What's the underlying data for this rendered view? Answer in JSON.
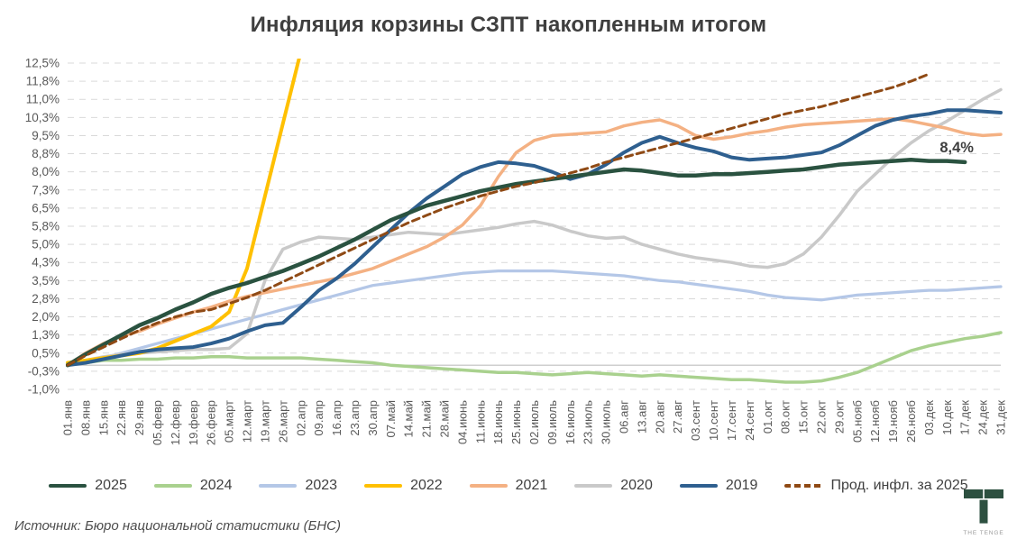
{
  "title": "Инфляция корзины СЗПТ накопленным итогом",
  "source": "Источник: Бюро национальной статистики (БНС)",
  "logo": {
    "text": "THE TENGE"
  },
  "colors": {
    "background": "#ffffff",
    "title_text": "#3f3f3f",
    "axis_text": "#595959",
    "gridline": "#d9d9d9",
    "zero_axis": "#bfbfbf",
    "annotation_text": "#3f3f3f",
    "logo_green": "#2d5040"
  },
  "chart_data": {
    "type": "line",
    "title": "Инфляция корзины СЗПТ накопленным итогом",
    "xlabel": "",
    "ylabel": "",
    "y_min": -1.0,
    "y_max": 12.5,
    "y_step": 0.75,
    "grid": "horizontal-dashed",
    "zero_axis_line": true,
    "legend_position": "bottom",
    "annotation": {
      "text": "8,4%",
      "index": 48.6,
      "value": 8.8
    },
    "y_ticks": [
      {
        "label": "12,5%",
        "value": 12.5
      },
      {
        "label": "11,8%",
        "value": 11.75
      },
      {
        "label": "11,0%",
        "value": 11.0
      },
      {
        "label": "10,3%",
        "value": 10.25
      },
      {
        "label": "9,5%",
        "value": 9.5
      },
      {
        "label": "8,8%",
        "value": 8.75
      },
      {
        "label": "8,0%",
        "value": 8.0
      },
      {
        "label": "7,3%",
        "value": 7.25
      },
      {
        "label": "6,5%",
        "value": 6.5
      },
      {
        "label": "5,8%",
        "value": 5.75
      },
      {
        "label": "5,0%",
        "value": 5.0
      },
      {
        "label": "4,3%",
        "value": 4.25
      },
      {
        "label": "3,5%",
        "value": 3.5
      },
      {
        "label": "2,8%",
        "value": 2.75
      },
      {
        "label": "2,0%",
        "value": 2.0
      },
      {
        "label": "1,3%",
        "value": 1.25
      },
      {
        "label": "0,5%",
        "value": 0.5
      },
      {
        "label": "-0,3%",
        "value": -0.25
      },
      {
        "label": "-1,0%",
        "value": -1.0
      }
    ],
    "x_labels": [
      "01.янв",
      "08.янв",
      "15.янв",
      "22.янв",
      "29.янв",
      "05.февр",
      "12.февр",
      "19.февр",
      "26.февр",
      "05.март",
      "12.март",
      "19.март",
      "26.март",
      "02.апр",
      "09.апр",
      "16.апр",
      "23.апр",
      "30.апр",
      "07.май",
      "14.май",
      "21.май",
      "28.май",
      "04.июнь",
      "11.июнь",
      "18.июнь",
      "25.июнь",
      "02.июль",
      "09.июль",
      "16.июль",
      "23.июль",
      "30.июль",
      "06.авг",
      "13.авг",
      "20.авг",
      "27.авг",
      "03.сент",
      "10.сент",
      "17.сент",
      "24.сент",
      "01.окт",
      "08.окт",
      "15.окт",
      "22.окт",
      "29.окт",
      "05.нояб",
      "12.нояб",
      "19.нояб",
      "26.нояб",
      "03.дек",
      "10.дек",
      "17.дек",
      "24.дек",
      "31.дек"
    ],
    "series": [
      {
        "name": "2025",
        "color": "#2a5240",
        "width": 4.5,
        "dash": null,
        "z": 7,
        "values": [
          0,
          0.45,
          0.85,
          1.25,
          1.65,
          1.95,
          2.3,
          2.6,
          2.95,
          3.2,
          3.4,
          3.65,
          3.9,
          4.2,
          4.5,
          4.85,
          5.2,
          5.6,
          6.0,
          6.3,
          6.6,
          6.8,
          7.0,
          7.2,
          7.35,
          7.5,
          7.6,
          7.7,
          7.8,
          7.9,
          8.0,
          8.1,
          8.05,
          7.95,
          7.85,
          7.85,
          7.9,
          7.9,
          7.95,
          8.0,
          8.05,
          8.1,
          8.2,
          8.3,
          8.35,
          8.4,
          8.45,
          8.5,
          8.45,
          8.45,
          8.4,
          null,
          null
        ]
      },
      {
        "name": "2024",
        "color": "#a9d18e",
        "width": 3.5,
        "dash": null,
        "z": 1,
        "values": [
          0,
          0.1,
          0.2,
          0.2,
          0.25,
          0.25,
          0.3,
          0.3,
          0.35,
          0.35,
          0.3,
          0.3,
          0.3,
          0.3,
          0.25,
          0.2,
          0.15,
          0.1,
          0,
          -0.05,
          -0.1,
          -0.15,
          -0.2,
          -0.25,
          -0.3,
          -0.3,
          -0.35,
          -0.4,
          -0.35,
          -0.3,
          -0.35,
          -0.4,
          -0.45,
          -0.4,
          -0.45,
          -0.5,
          -0.55,
          -0.6,
          -0.6,
          -0.65,
          -0.7,
          -0.7,
          -0.65,
          -0.5,
          -0.3,
          0,
          0.3,
          0.6,
          0.8,
          0.95,
          1.1,
          1.2,
          1.35
        ]
      },
      {
        "name": "2023",
        "color": "#b4c7e7",
        "width": 3.25,
        "dash": null,
        "z": 2,
        "values": [
          0,
          0.15,
          0.3,
          0.5,
          0.7,
          0.9,
          1.1,
          1.3,
          1.5,
          1.7,
          1.9,
          2.1,
          2.3,
          2.5,
          2.7,
          2.9,
          3.1,
          3.3,
          3.4,
          3.5,
          3.6,
          3.7,
          3.8,
          3.85,
          3.9,
          3.9,
          3.9,
          3.9,
          3.85,
          3.8,
          3.75,
          3.7,
          3.6,
          3.5,
          3.45,
          3.35,
          3.25,
          3.15,
          3.05,
          2.9,
          2.8,
          2.75,
          2.7,
          2.8,
          2.9,
          2.95,
          3.0,
          3.05,
          3.1,
          3.1,
          3.15,
          3.2,
          3.25
        ]
      },
      {
        "name": "2022",
        "color": "#ffc000",
        "width": 4,
        "dash": null,
        "z": 4,
        "values": [
          0.1,
          0.2,
          0.3,
          0.4,
          0.5,
          0.7,
          1.0,
          1.3,
          1.6,
          2.2,
          4.0,
          7.0,
          10.0,
          13.0,
          null,
          null,
          null,
          null,
          null,
          null,
          null,
          null,
          null,
          null,
          null,
          null,
          null,
          null,
          null,
          null,
          null,
          null,
          null,
          null,
          null,
          null,
          null,
          null,
          null,
          null,
          null,
          null,
          null,
          null,
          null,
          null,
          null,
          null,
          null,
          null,
          null,
          null,
          null
        ]
      },
      {
        "name": "2021",
        "color": "#f4b183",
        "width": 3.5,
        "dash": null,
        "z": 5,
        "values": [
          0,
          0.5,
          0.9,
          1.2,
          1.4,
          1.7,
          1.95,
          2.2,
          2.4,
          2.65,
          2.85,
          3.0,
          3.15,
          3.3,
          3.45,
          3.6,
          3.8,
          4.0,
          4.3,
          4.6,
          4.9,
          5.3,
          5.8,
          6.6,
          7.8,
          8.8,
          9.3,
          9.5,
          9.55,
          9.6,
          9.65,
          9.9,
          10.05,
          10.15,
          9.9,
          9.5,
          9.35,
          9.45,
          9.6,
          9.7,
          9.85,
          9.95,
          10.0,
          10.05,
          10.1,
          10.15,
          10.2,
          10.1,
          9.95,
          9.8,
          9.6,
          9.5,
          9.55
        ]
      },
      {
        "name": "2020",
        "color": "#c9c9c9",
        "width": 3.5,
        "dash": null,
        "z": 3,
        "values": [
          0,
          0.2,
          0.35,
          0.45,
          0.5,
          0.55,
          0.6,
          0.65,
          0.65,
          0.7,
          1.3,
          3.5,
          4.8,
          5.1,
          5.3,
          5.25,
          5.2,
          5.3,
          5.4,
          5.5,
          5.45,
          5.4,
          5.5,
          5.6,
          5.7,
          5.85,
          5.95,
          5.8,
          5.55,
          5.35,
          5.25,
          5.3,
          5.0,
          4.8,
          4.6,
          4.45,
          4.35,
          4.25,
          4.1,
          4.05,
          4.2,
          4.6,
          5.3,
          6.2,
          7.2,
          7.9,
          8.6,
          9.2,
          9.7,
          10.1,
          10.55,
          11.0,
          11.4
        ]
      },
      {
        "name": "2019",
        "color": "#2e5f8f",
        "width": 4,
        "dash": null,
        "z": 6,
        "values": [
          0,
          0.1,
          0.25,
          0.4,
          0.55,
          0.65,
          0.7,
          0.75,
          0.9,
          1.1,
          1.4,
          1.65,
          1.75,
          2.4,
          3.1,
          3.6,
          4.2,
          4.9,
          5.6,
          6.3,
          6.9,
          7.4,
          7.9,
          8.2,
          8.4,
          8.35,
          8.25,
          8.0,
          7.7,
          7.9,
          8.3,
          8.8,
          9.2,
          9.45,
          9.2,
          9.0,
          8.85,
          8.6,
          8.5,
          8.55,
          8.6,
          8.7,
          8.8,
          9.1,
          9.5,
          9.9,
          10.15,
          10.3,
          10.4,
          10.55,
          10.55,
          10.5,
          10.45
        ]
      },
      {
        "name": "Прод. инфл. за 2025",
        "color": "#8f4a15",
        "width": 3,
        "dash": [
          8,
          5
        ],
        "z": 8,
        "values": [
          0,
          0.4,
          0.75,
          1.1,
          1.45,
          1.75,
          2.0,
          2.2,
          2.3,
          2.55,
          2.8,
          3.1,
          3.45,
          3.8,
          4.15,
          4.5,
          4.85,
          5.2,
          5.55,
          5.9,
          6.2,
          6.5,
          6.75,
          7.0,
          7.2,
          7.4,
          7.55,
          7.75,
          7.95,
          8.15,
          8.4,
          8.6,
          8.8,
          9.0,
          9.2,
          9.4,
          9.6,
          9.8,
          10.0,
          10.2,
          10.4,
          10.55,
          10.7,
          10.9,
          11.1,
          11.3,
          11.5,
          11.75,
          12.05,
          null,
          null,
          null,
          null
        ]
      }
    ]
  }
}
